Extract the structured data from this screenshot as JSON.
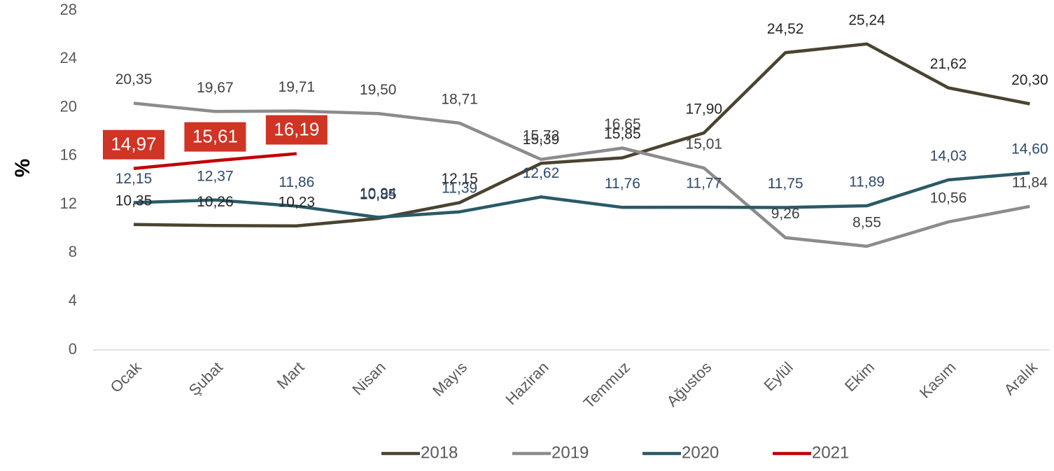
{
  "chart_data": {
    "type": "line",
    "y_label": "%",
    "categories": [
      "Ocak",
      "Şubat",
      "Mart",
      "Nisan",
      "Mayıs",
      "Haziran",
      "Temmuz",
      "Ağustos",
      "Eylül",
      "Ekim",
      "Kasım",
      "Aralık"
    ],
    "ylim": [
      0,
      28
    ],
    "yticks": [
      0,
      4,
      8,
      12,
      16,
      20,
      24,
      28
    ],
    "grid": false,
    "legend": "bottom",
    "series": [
      {
        "name": "2018",
        "color": "#4a4330",
        "label_color": "#262626",
        "values": [
          10.35,
          10.26,
          10.23,
          10.85,
          12.15,
          15.39,
          15.85,
          17.9,
          24.52,
          25.24,
          21.62,
          20.3
        ],
        "value_labels": [
          "10,35",
          "10,26",
          "10,23",
          "10,85",
          "12,15",
          "15,39",
          "15,85",
          "17,90",
          "24,52",
          "25,24",
          "21,62",
          "20,30"
        ]
      },
      {
        "name": "2019",
        "color": "#8c8c8c",
        "label_color": "#404040",
        "values": [
          20.35,
          19.67,
          19.71,
          19.5,
          18.71,
          15.72,
          16.65,
          15.01,
          9.26,
          8.55,
          10.56,
          11.84
        ],
        "value_labels": [
          "20,35",
          "19,67",
          "19,71",
          "19,50",
          "18,71",
          "15,72",
          "16,65",
          "15,01",
          "9,26",
          "8,55",
          "10,56",
          "11,84"
        ]
      },
      {
        "name": "2020",
        "color": "#2a5a66",
        "label_color": "#2e4a6b",
        "values": [
          12.15,
          12.37,
          11.86,
          10.94,
          11.39,
          12.62,
          11.76,
          11.77,
          11.75,
          11.89,
          14.03,
          14.6
        ],
        "value_labels": [
          "12,15",
          "12,37",
          "11,86",
          "10,94",
          "11,39",
          "12,62",
          "11,76",
          "11,77",
          "11,75",
          "11,89",
          "14,03",
          "14,60"
        ]
      },
      {
        "name": "2021",
        "color": "#c00000",
        "label_box": "#d03424",
        "values": [
          14.97,
          15.61,
          16.19,
          null,
          null,
          null,
          null,
          null,
          null,
          null,
          null,
          null
        ],
        "value_labels": [
          "14,97",
          "15,61",
          "16,19",
          null,
          null,
          null,
          null,
          null,
          null,
          null,
          null,
          null
        ]
      }
    ]
  }
}
